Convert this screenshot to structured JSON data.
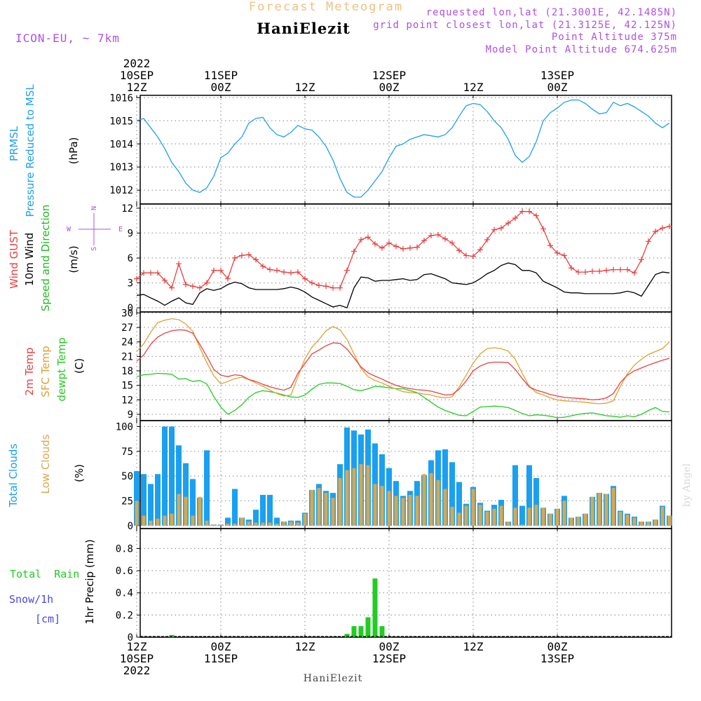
{
  "header": {
    "product_title": "Forecast Meteogram",
    "station_name": "HaniElezit",
    "model_name": "ICON-EU, ~ 7km",
    "requested_coords": "requested lon,lat (21.3001E, 42.1485N)",
    "grid_coords": "grid point closest lon,lat (21.3125E, 42.125N)",
    "point_altitude": "Point Altitude 375m",
    "model_altitude": "Model Point Altitude 674.625m"
  },
  "time_axis": {
    "top_labels": [
      {
        "h": 12,
        "lines": [
          "2022",
          "10SEP",
          "12Z"
        ]
      },
      {
        "h": 24,
        "lines": [
          "11SEP",
          "00Z"
        ]
      },
      {
        "h": 36,
        "lines": [
          "12Z"
        ]
      },
      {
        "h": 48,
        "lines": [
          "12SEP",
          "00Z"
        ]
      },
      {
        "h": 60,
        "lines": [
          "12Z"
        ]
      },
      {
        "h": 72,
        "lines": [
          "13SEP",
          "00Z"
        ]
      }
    ],
    "bottom_labels": [
      {
        "h": 12,
        "lines": [
          "12Z",
          "10SEP",
          "2022"
        ]
      },
      {
        "h": 24,
        "lines": [
          "00Z",
          "11SEP"
        ]
      },
      {
        "h": 36,
        "lines": [
          "12Z"
        ]
      },
      {
        "h": 48,
        "lines": [
          "00Z",
          "12SEP"
        ]
      },
      {
        "h": 60,
        "lines": [
          "12Z"
        ]
      },
      {
        "h": 72,
        "lines": [
          "00Z",
          "13SEP"
        ]
      }
    ],
    "start_hour": 12,
    "end_hour": 88
  },
  "footer": {
    "station_name": "HaniElezit",
    "watermark": "by Angel"
  },
  "colors": {
    "pressure": "#1ea0f0",
    "gust": "#e84040",
    "wind": "#000000",
    "wind_speed_label": "#22bb22",
    "temp2m": "#e84040",
    "sfc_temp": "#e0a030",
    "dewpt": "#22cc22",
    "total_clouds": "#1aa0f0",
    "low_clouds": "#d8a850",
    "rain": "#22cc22",
    "snow": "#4848e8",
    "direction_legend": "#b050e0",
    "header_purple": "#b050e0",
    "title_orange": "#f0c080"
  },
  "chart_data": [
    {
      "type": "line",
      "name": "pressure",
      "title_lines": [
        "PRMSL",
        "Pressure Reduced to MSL"
      ],
      "unit": "(hPa)",
      "ylim": [
        1011.4,
        1016.1
      ],
      "yticks": [
        1012,
        1013,
        1014,
        1015,
        1016
      ],
      "x_hours": [
        12,
        13,
        14,
        15,
        16,
        17,
        18,
        19,
        20,
        21,
        22,
        23,
        24,
        25,
        26,
        27,
        28,
        29,
        30,
        31,
        32,
        33,
        34,
        35,
        36,
        37,
        38,
        39,
        40,
        41,
        42,
        43,
        44,
        45,
        46,
        47,
        48,
        49,
        50,
        51,
        52,
        53,
        54,
        55,
        56,
        57,
        58,
        59,
        60,
        61,
        62,
        63,
        64,
        65,
        66,
        67,
        68,
        69,
        70,
        71,
        72,
        73,
        74,
        75,
        76,
        77,
        78,
        79,
        80,
        81,
        82,
        83,
        84,
        85,
        86,
        87,
        88
      ],
      "values": [
        1015.0,
        1015.1,
        1014.7,
        1014.3,
        1013.8,
        1013.2,
        1012.8,
        1012.3,
        1012.0,
        1011.9,
        1012.1,
        1012.6,
        1013.4,
        1013.6,
        1014.0,
        1014.3,
        1014.9,
        1015.1,
        1015.15,
        1014.7,
        1014.4,
        1014.3,
        1014.5,
        1014.8,
        1014.65,
        1014.6,
        1014.3,
        1013.9,
        1013.3,
        1012.5,
        1011.9,
        1011.7,
        1011.7,
        1012.0,
        1012.4,
        1012.8,
        1013.4,
        1013.9,
        1014.0,
        1014.2,
        1014.3,
        1014.4,
        1014.35,
        1014.3,
        1014.4,
        1014.7,
        1015.2,
        1015.65,
        1015.75,
        1015.7,
        1015.4,
        1015.0,
        1014.7,
        1014.2,
        1013.5,
        1013.2,
        1013.45,
        1014.1,
        1015.0,
        1015.35,
        1015.55,
        1015.8,
        1015.9,
        1015.9,
        1015.75,
        1015.5,
        1015.3,
        1015.35,
        1015.8,
        1015.65,
        1015.75,
        1015.6,
        1015.4,
        1015.2,
        1014.9,
        1014.7,
        1014.9
      ]
    },
    {
      "type": "line",
      "name": "wind",
      "title_lines_red": [
        "Wind GUST"
      ],
      "title_lines_black": [
        "10m Wind"
      ],
      "title_lines_green": [
        "Speed and Direction"
      ],
      "unit": "(m/s)",
      "ylim": [
        -0.5,
        12.5
      ],
      "yticks": [
        0,
        3,
        6,
        9,
        12
      ],
      "direction_legend": {
        "n": "N",
        "s": "S",
        "w": "W",
        "e": "E"
      },
      "x_hours": [
        12,
        13,
        14,
        15,
        16,
        17,
        18,
        19,
        20,
        21,
        22,
        23,
        24,
        25,
        26,
        27,
        28,
        29,
        30,
        31,
        32,
        33,
        34,
        35,
        36,
        37,
        38,
        39,
        40,
        41,
        42,
        43,
        44,
        45,
        46,
        47,
        48,
        49,
        50,
        51,
        52,
        53,
        54,
        55,
        56,
        57,
        58,
        59,
        60,
        61,
        62,
        63,
        64,
        65,
        66,
        67,
        68,
        69,
        70,
        71,
        72,
        73,
        74,
        75,
        76,
        77,
        78,
        79,
        80,
        81,
        82,
        83,
        84,
        85,
        86,
        87,
        88
      ],
      "gust": [
        3.5,
        4.2,
        4.2,
        4.2,
        3.3,
        2.4,
        5.3,
        2.8,
        2.6,
        2.4,
        3.0,
        4.5,
        4.5,
        3.5,
        6.0,
        6.3,
        6.4,
        5.8,
        5.0,
        4.6,
        4.5,
        4.3,
        4.2,
        4.3,
        3.5,
        3.0,
        2.7,
        2.6,
        2.4,
        2.4,
        4.5,
        6.8,
        8.2,
        8.5,
        7.7,
        7.2,
        7.8,
        7.4,
        7.1,
        7.2,
        7.3,
        8.1,
        8.7,
        8.8,
        8.3,
        7.8,
        6.9,
        6.3,
        6.2,
        7.0,
        8.2,
        9.4,
        9.6,
        10.2,
        10.8,
        11.6,
        11.6,
        11.1,
        9.5,
        7.5,
        6.6,
        6.3,
        4.8,
        4.3,
        4.3,
        4.4,
        4.4,
        4.5,
        4.6,
        4.6,
        4.6,
        4.2,
        5.8,
        8.0,
        9.2,
        9.6,
        9.8
      ],
      "wind10m": [
        1.5,
        1.6,
        1.2,
        0.8,
        0.3,
        0.8,
        1.2,
        0.6,
        0.4,
        1.8,
        2.3,
        2.1,
        2.3,
        2.8,
        3.1,
        2.9,
        2.4,
        2.2,
        2.2,
        2.2,
        2.2,
        2.3,
        2.5,
        2.3,
        1.9,
        1.3,
        0.9,
        0.5,
        0.1,
        0.3,
        0.0,
        2.4,
        3.7,
        3.6,
        3.2,
        3.3,
        3.3,
        3.4,
        3.5,
        3.3,
        3.4,
        4.0,
        4.1,
        3.8,
        3.5,
        3.0,
        2.9,
        2.8,
        3.0,
        3.5,
        4.1,
        4.5,
        5.1,
        5.4,
        5.2,
        4.5,
        4.5,
        4.2,
        3.2,
        2.8,
        2.4,
        1.9,
        1.8,
        1.8,
        1.7,
        1.7,
        1.7,
        1.7,
        1.7,
        1.8,
        2.0,
        1.8,
        1.4,
        2.7,
        4.0,
        4.3,
        4.2
      ]
    },
    {
      "type": "line",
      "name": "temperature",
      "title_red": "2m Temp",
      "title_orange": "SFC Temp",
      "title_green": "dewpt Temp",
      "unit": "(C)",
      "ylim": [
        7.7,
        30.2
      ],
      "yticks": [
        9,
        12,
        15,
        18,
        21,
        24,
        27,
        30
      ],
      "x_hours": [
        12,
        13,
        14,
        15,
        16,
        17,
        18,
        19,
        20,
        21,
        22,
        23,
        24,
        25,
        26,
        27,
        28,
        29,
        30,
        31,
        32,
        33,
        34,
        35,
        36,
        37,
        38,
        39,
        40,
        41,
        42,
        43,
        44,
        45,
        46,
        47,
        48,
        49,
        50,
        51,
        52,
        53,
        54,
        55,
        56,
        57,
        58,
        59,
        60,
        61,
        62,
        63,
        64,
        65,
        66,
        67,
        68,
        69,
        70,
        71,
        72,
        73,
        74,
        75,
        76,
        77,
        78,
        79,
        80,
        81,
        82,
        83,
        84,
        85,
        86,
        87,
        88
      ],
      "temp2m": [
        20.0,
        21.3,
        23.5,
        25.0,
        25.8,
        26.3,
        26.5,
        26.4,
        25.8,
        23.5,
        21.0,
        18.3,
        17.1,
        16.8,
        17.2,
        17.0,
        16.2,
        15.8,
        15.2,
        14.7,
        14.3,
        14.0,
        14.6,
        17.5,
        19.5,
        21.5,
        22.3,
        23.2,
        23.8,
        23.7,
        22.5,
        20.7,
        18.8,
        17.6,
        16.9,
        16.3,
        15.6,
        15.0,
        14.6,
        14.3,
        14.1,
        14.0,
        13.8,
        13.4,
        13.0,
        13.1,
        14.2,
        15.9,
        18.0,
        19.0,
        19.6,
        19.8,
        19.8,
        19.7,
        18.3,
        16.4,
        14.7,
        14.0,
        13.6,
        13.1,
        12.8,
        12.5,
        12.4,
        12.3,
        12.2,
        12.0,
        12.1,
        12.4,
        13.3,
        15.6,
        17.1,
        18.0,
        18.6,
        19.2,
        19.7,
        20.2,
        20.6
      ],
      "sfc_temp": [
        22.0,
        23.6,
        26.0,
        28.0,
        28.5,
        28.8,
        28.6,
        27.7,
        26.2,
        22.8,
        19.7,
        17.0,
        15.3,
        15.8,
        16.4,
        16.7,
        16.2,
        15.5,
        14.8,
        14.0,
        13.3,
        12.8,
        13.0,
        16.8,
        20.5,
        22.9,
        24.5,
        26.3,
        27.2,
        26.5,
        24.5,
        21.5,
        18.5,
        16.8,
        16.0,
        15.5,
        14.8,
        14.2,
        13.7,
        13.5,
        13.4,
        13.2,
        13.0,
        12.6,
        12.4,
        12.6,
        14.7,
        17.1,
        19.6,
        21.5,
        22.6,
        22.8,
        22.6,
        22.1,
        20.4,
        17.5,
        14.8,
        13.5,
        13.0,
        12.4,
        12.0,
        11.8,
        11.7,
        11.6,
        11.5,
        11.3,
        11.2,
        11.3,
        11.8,
        14.8,
        17.4,
        19.2,
        20.4,
        21.4,
        22.0,
        22.6,
        24.0
      ],
      "dewpt": [
        16.8,
        17.2,
        17.3,
        17.5,
        17.4,
        17.3,
        16.3,
        16.4,
        15.8,
        16.0,
        15.3,
        12.7,
        10.5,
        9.0,
        9.8,
        11.0,
        12.5,
        13.5,
        13.9,
        13.7,
        13.4,
        13.0,
        12.6,
        12.5,
        13.0,
        14.2,
        15.2,
        15.5,
        15.5,
        15.4,
        14.8,
        14.1,
        13.9,
        14.3,
        14.8,
        14.7,
        14.5,
        14.3,
        14.3,
        13.9,
        13.5,
        12.5,
        11.5,
        10.5,
        9.8,
        9.3,
        8.8,
        8.7,
        9.6,
        10.5,
        10.6,
        10.7,
        10.6,
        10.4,
        9.8,
        9.2,
        8.7,
        8.9,
        8.8,
        8.6,
        8.3,
        8.4,
        8.7,
        9.0,
        9.2,
        9.3,
        9.0,
        8.7,
        8.6,
        8.4,
        8.7,
        8.5,
        9.0,
        9.8,
        10.4,
        9.6,
        9.5
      ]
    },
    {
      "type": "bar",
      "name": "clouds",
      "title_blue": "Total Clouds",
      "title_orange": "Low Clouds",
      "unit": "(%)",
      "ylim": [
        -3,
        106
      ],
      "yticks": [
        0,
        25,
        50,
        75,
        100
      ],
      "x_hours": [
        12,
        13,
        14,
        15,
        16,
        17,
        18,
        19,
        20,
        21,
        22,
        23,
        24,
        25,
        26,
        27,
        28,
        29,
        30,
        31,
        32,
        33,
        34,
        35,
        36,
        37,
        38,
        39,
        40,
        41,
        42,
        43,
        44,
        45,
        46,
        47,
        48,
        49,
        50,
        51,
        52,
        53,
        54,
        55,
        56,
        57,
        58,
        59,
        60,
        61,
        62,
        63,
        64,
        65,
        66,
        67,
        68,
        69,
        70,
        71,
        72,
        73,
        74,
        75,
        76,
        77,
        78,
        79,
        80,
        81,
        82,
        83,
        84,
        85,
        86,
        87,
        88
      ],
      "total": [
        55,
        52,
        42,
        52,
        100,
        100,
        81,
        63,
        47,
        28,
        76,
        1,
        1,
        8,
        37,
        8,
        6,
        16,
        31,
        31,
        8,
        4,
        5,
        5,
        13,
        36,
        42,
        35,
        33,
        62,
        99,
        96,
        92,
        97,
        83,
        72,
        58,
        45,
        30,
        35,
        45,
        51,
        66,
        76,
        77,
        64,
        44,
        22,
        39,
        23,
        15,
        21,
        26,
        4,
        61,
        20,
        61,
        48,
        18,
        12,
        17,
        30,
        8,
        9,
        12,
        29,
        33,
        32,
        40,
        15,
        12,
        9,
        4,
        4,
        6,
        20,
        10
      ],
      "low": [
        25,
        10,
        5,
        7,
        10,
        12,
        32,
        29,
        10,
        29,
        5,
        1,
        1,
        2,
        2,
        8,
        4,
        3,
        3,
        3,
        2,
        4,
        4,
        3,
        12,
        36,
        38,
        33,
        28,
        48,
        56,
        58,
        62,
        61,
        42,
        40,
        35,
        30,
        28,
        31,
        30,
        52,
        53,
        46,
        37,
        19,
        13,
        20,
        37,
        21,
        14,
        17,
        20,
        4,
        18,
        1,
        18,
        21,
        18,
        12,
        17,
        25,
        8,
        9,
        12,
        29,
        33,
        32,
        38,
        14,
        11,
        8,
        4,
        4,
        6,
        19,
        10
      ]
    },
    {
      "type": "bar",
      "name": "precipitation",
      "title_green": "Total  Rain",
      "title_blue_lines": [
        "Snow/1h",
        "[cm]"
      ],
      "unit": "1hr Precip (mm)",
      "ylim": [
        0,
        0.98
      ],
      "yticks": [
        0,
        0.2,
        0.4,
        0.6,
        0.8
      ],
      "x_hours": [
        12,
        13,
        14,
        15,
        16,
        17,
        18,
        19,
        20,
        21,
        22,
        23,
        24,
        25,
        26,
        27,
        28,
        29,
        30,
        31,
        32,
        33,
        34,
        35,
        36,
        37,
        38,
        39,
        40,
        41,
        42,
        43,
        44,
        45,
        46,
        47,
        48,
        49,
        50,
        51,
        52,
        53,
        54,
        55,
        56,
        57,
        58,
        59,
        60,
        61,
        62,
        63,
        64,
        65,
        66,
        67,
        68,
        69,
        70,
        71,
        72,
        73,
        74,
        75,
        76,
        77,
        78,
        79,
        80,
        81,
        82,
        83,
        84,
        85,
        86,
        87,
        88
      ],
      "rain": [
        0,
        0,
        0,
        0,
        0,
        0.02,
        0,
        0,
        0,
        0,
        0,
        0,
        0,
        0,
        0,
        0,
        0,
        0,
        0,
        0,
        0,
        0,
        0,
        0,
        0,
        0,
        0,
        0,
        0,
        0,
        0.03,
        0.1,
        0.1,
        0.18,
        0.53,
        0.1,
        0,
        0,
        0,
        0,
        0,
        0,
        0,
        0,
        0,
        0,
        0,
        0,
        0,
        0,
        0,
        0,
        0,
        0,
        0,
        0,
        0,
        0,
        0,
        0,
        0,
        0,
        0,
        0,
        0,
        0,
        0,
        0,
        0,
        0,
        0,
        0,
        0,
        0,
        0,
        0,
        0
      ]
    }
  ]
}
